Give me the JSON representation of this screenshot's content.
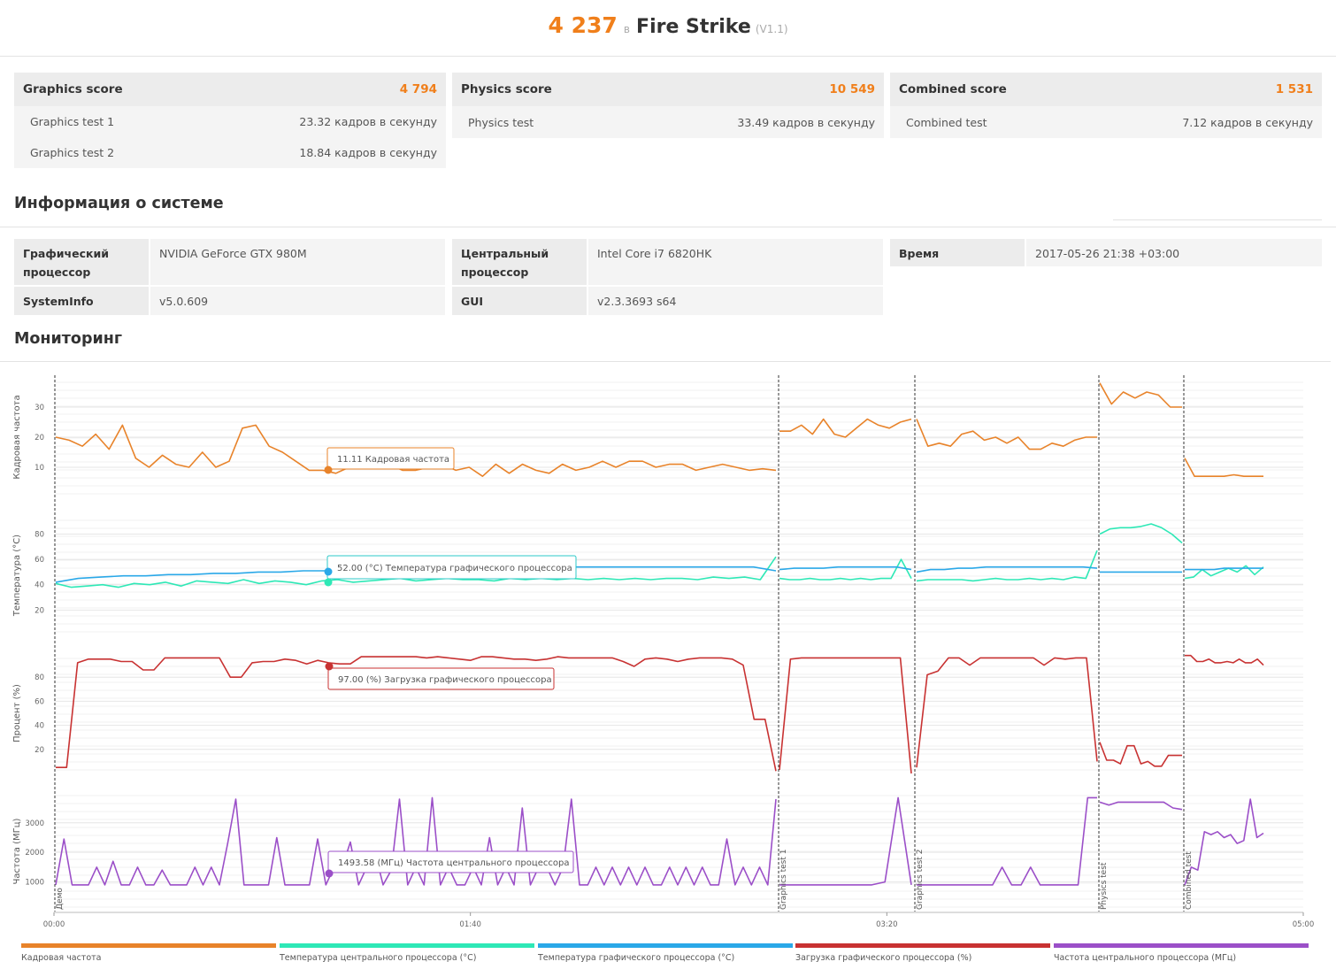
{
  "header": {
    "score": "4 237",
    "in_label": "в",
    "benchmark": "Fire Strike",
    "version": "(V1.1)"
  },
  "scores": [
    {
      "name": "Graphics score",
      "value": "4 794",
      "tests": [
        {
          "name": "Graphics test 1",
          "value": "23.32 кадров в секунду"
        },
        {
          "name": "Graphics test 2",
          "value": "18.84 кадров в секунду"
        }
      ]
    },
    {
      "name": "Physics score",
      "value": "10 549",
      "tests": [
        {
          "name": "Physics test",
          "value": "33.49 кадров в секунду"
        }
      ]
    },
    {
      "name": "Combined score",
      "value": "1 531",
      "tests": [
        {
          "name": "Combined test",
          "value": "7.12 кадров в секунду"
        }
      ]
    }
  ],
  "system_info": {
    "title": "Информация о системе",
    "gpu_label": "Графический процессор",
    "gpu_value": "NVIDIA GeForce GTX 980M",
    "sysinfo_label": "SystemInfo",
    "sysinfo_value": "v5.0.609",
    "cpu_label": "Центральный процессор",
    "cpu_value": "Intel Core i7 6820HK",
    "gui_label": "GUI",
    "gui_value": "v2.3.3693 s64",
    "time_label": "Время",
    "time_value": "2017-05-26 21:38 +03:00"
  },
  "monitoring": {
    "title": "Мониторинг",
    "x_ticks": [
      "00:00",
      "01:40",
      "03:20",
      "05:00"
    ],
    "segment_labels": [
      "Демо",
      "Graphics test 1",
      "Graphics test 2",
      "Physics test",
      "Combined test"
    ],
    "legend": [
      {
        "label": "Кадровая частота",
        "color": "#e8832a"
      },
      {
        "label": "Температура центрального процессора (°C)",
        "color": "#2ee8b6"
      },
      {
        "label": "Температура графического процессора (°C)",
        "color": "#2aa8e8"
      },
      {
        "label": "Загрузка графического процессора (%)",
        "color": "#c83232"
      },
      {
        "label": "Частота центрального процессора (МГц)",
        "color": "#9b4fc8"
      }
    ],
    "tooltips": {
      "fps": "11.11 Кадровая частота",
      "gpu_temp": "52.00 (°C) Температура графического процессора",
      "gpu_load": "97.00 (%) Загрузка графического процессора",
      "cpu_clock": "1493.58 (МГц) Частота центрального процессора"
    }
  },
  "chart_data": [
    {
      "type": "line",
      "ylabel": "Кадровая частота",
      "y_ticks": [
        10,
        20,
        30
      ],
      "series": [
        {
          "name": "Кадровая частота",
          "color": "#e8832a",
          "segments": [
            [
              20,
              19,
              17,
              21,
              16,
              24,
              13,
              10,
              14,
              11,
              10,
              15,
              10,
              12,
              23,
              24,
              17,
              15,
              12,
              9,
              9,
              8,
              10,
              13,
              11,
              11,
              9,
              9,
              10,
              11,
              9,
              10,
              7,
              11,
              8,
              11,
              9,
              8,
              11,
              9,
              10,
              12,
              10,
              12,
              12,
              10,
              11,
              11,
              9,
              10,
              11,
              10,
              9,
              9.5,
              9
            ],
            [
              22,
              22,
              24,
              21,
              26,
              21,
              20,
              23,
              26,
              24,
              23,
              25,
              26
            ],
            [
              26,
              17,
              18,
              17,
              21,
              22,
              19,
              20,
              18,
              20,
              16,
              16,
              18,
              17,
              19,
              20,
              20
            ],
            [
              38,
              31,
              35,
              33,
              35,
              34,
              30,
              30
            ],
            [
              13,
              7,
              7,
              7,
              7,
              7.5,
              7,
              7,
              7
            ]
          ]
        }
      ]
    },
    {
      "type": "line",
      "ylabel": "Температура (°C)",
      "y_ticks": [
        20,
        40,
        60,
        80
      ],
      "series": [
        {
          "name": "Температура центрального процессора (°C)",
          "color": "#2ee8b6",
          "segments": [
            [
              41,
              38,
              39,
              40,
              38,
              41,
              40,
              42,
              39,
              43,
              42,
              41,
              44,
              41,
              43,
              42,
              40,
              43,
              44,
              42,
              43,
              44,
              45,
              43,
              44,
              45,
              44,
              44,
              43,
              45,
              44,
              45,
              44,
              45,
              44,
              45,
              44,
              45,
              44,
              45,
              45,
              44,
              46,
              45,
              46,
              44,
              62
            ],
            [
              45,
              44,
              44,
              45,
              44,
              44,
              45,
              44,
              45,
              44,
              45,
              45,
              60,
              45
            ],
            [
              43,
              44,
              44,
              44,
              44,
              43,
              44,
              45,
              44,
              44,
              45,
              44,
              45,
              44,
              46,
              45,
              67
            ],
            [
              80,
              84,
              85,
              85,
              86,
              88,
              85,
              80,
              73
            ],
            [
              45,
              46,
              52,
              47,
              50,
              53,
              50,
              55,
              48,
              54
            ]
          ]
        },
        {
          "name": "Температура графического процессора (°C)",
          "color": "#2aa8e8",
          "segments": [
            [
              42,
              45,
              46,
              47,
              47,
              48,
              48,
              49,
              49,
              50,
              50,
              51,
              51,
              52,
              52,
              52,
              53,
              53,
              53,
              53,
              54,
              54,
              54,
              54,
              54,
              54,
              54,
              54,
              54,
              54,
              54,
              54,
              51
            ],
            [
              52,
              53,
              53,
              53,
              54,
              54,
              54,
              54,
              54,
              52
            ],
            [
              50,
              52,
              52,
              53,
              53,
              54,
              54,
              54,
              54,
              54,
              54,
              54,
              54,
              53
            ],
            [
              50,
              50,
              50,
              50,
              50,
              50,
              50,
              50
            ],
            [
              52,
              52,
              52,
              52,
              53,
              53,
              53,
              53,
              53
            ]
          ]
        }
      ]
    },
    {
      "type": "line",
      "ylabel": "Процент (%)",
      "y_ticks": [
        20,
        40,
        60,
        80
      ],
      "series": [
        {
          "name": "Загрузка графического процессора (%)",
          "color": "#c83232",
          "segments": [
            [
              5,
              5,
              92,
              95,
              95,
              95,
              93,
              93,
              86,
              86,
              96,
              96,
              96,
              96,
              96,
              96,
              80,
              80,
              92,
              93,
              93,
              95,
              94,
              91,
              94,
              92,
              91,
              91,
              97,
              97,
              97,
              97,
              97,
              97,
              96,
              97,
              96,
              95,
              94,
              97,
              97,
              96,
              95,
              95,
              94,
              95,
              97,
              96,
              96,
              96,
              96,
              96,
              93,
              89,
              95,
              96,
              95,
              93,
              95,
              96,
              96,
              96,
              95,
              90,
              45,
              45,
              2
            ],
            [
              3,
              95,
              96,
              96,
              96,
              96,
              96,
              96,
              96,
              96,
              96,
              96,
              0
            ],
            [
              5,
              82,
              85,
              96,
              96,
              90,
              96,
              96,
              96,
              96,
              96,
              96,
              90,
              96,
              95,
              96,
              96,
              10
            ],
            [
              26,
              11,
              11,
              8,
              23,
              23,
              8,
              10,
              6,
              6,
              15,
              15,
              15
            ],
            [
              98,
              98,
              93,
              93,
              95,
              92,
              92,
              93,
              92,
              95,
              92,
              92,
              95,
              90
            ]
          ]
        }
      ]
    },
    {
      "type": "line",
      "ylabel": "Частота (МГц)",
      "y_ticks": [
        1000,
        2000,
        3000
      ],
      "series": [
        {
          "name": "Частота центрального процессора (МГц)",
          "color": "#9b4fc8",
          "segments": [
            [
              900,
              2450,
              900,
              900,
              900,
              1500,
              900,
              1700,
              900,
              900,
              1500,
              900,
              900,
              1400,
              900,
              900,
              900,
              1500,
              900,
              1500,
              900,
              2300,
              3800,
              900,
              900,
              900,
              900,
              2500,
              900,
              900,
              900,
              900,
              2450,
              900,
              1500,
              1500,
              2350,
              900,
              1500,
              2000,
              900,
              1400,
              3800,
              900,
              1500,
              900,
              3850,
              900,
              1500,
              900,
              900,
              1500,
              900,
              2500,
              900,
              1500,
              900,
              3500,
              900,
              1500,
              1500,
              900,
              1500,
              3800,
              900,
              900,
              1500,
              900,
              1500,
              900,
              1500,
              900,
              1500,
              900,
              900,
              1500,
              900,
              1500,
              900,
              1500,
              900,
              900,
              2450,
              900,
              1500,
              900,
              1500,
              900,
              3800
            ],
            [
              900,
              900,
              900,
              900,
              900,
              900,
              900,
              900,
              1000,
              3850,
              900
            ],
            [
              900,
              900,
              900,
              900,
              900,
              900,
              900,
              900,
              900,
              1500,
              900,
              900,
              1500,
              900,
              900,
              900,
              900,
              900,
              3850,
              3850
            ],
            [
              3700,
              3600,
              3700,
              3700,
              3700,
              3700,
              3700,
              3700,
              3500,
              3450
            ],
            [
              900,
              1500,
              1400,
              2700,
              2600,
              2700,
              2500,
              2600,
              2300,
              2400,
              3800,
              2500,
              2650
            ]
          ]
        }
      ]
    }
  ]
}
